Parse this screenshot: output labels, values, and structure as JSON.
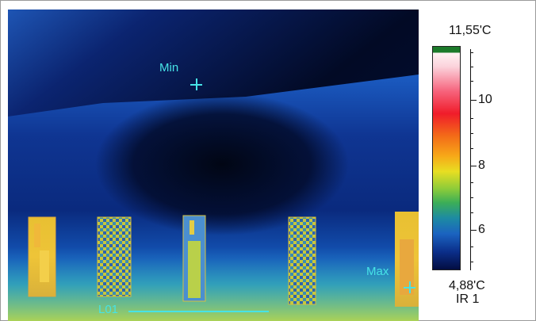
{
  "thermal_image": {
    "min_marker_label": "Min",
    "max_marker_label": "Max",
    "profile_line_label": "L01"
  },
  "scale": {
    "max_temp": "11,55'C",
    "min_temp": "4,88'C",
    "image_id": "IR 1",
    "tick_labels": [
      "10",
      "8",
      "6"
    ],
    "colors": {
      "top_marker": "#1c7a2a",
      "hot": "#fff3f4",
      "warm": "#f01c2a",
      "mid": "#e8de22",
      "cool": "#1b63c0",
      "cold": "#030d42"
    }
  },
  "overlay_color": "#46e3e6"
}
